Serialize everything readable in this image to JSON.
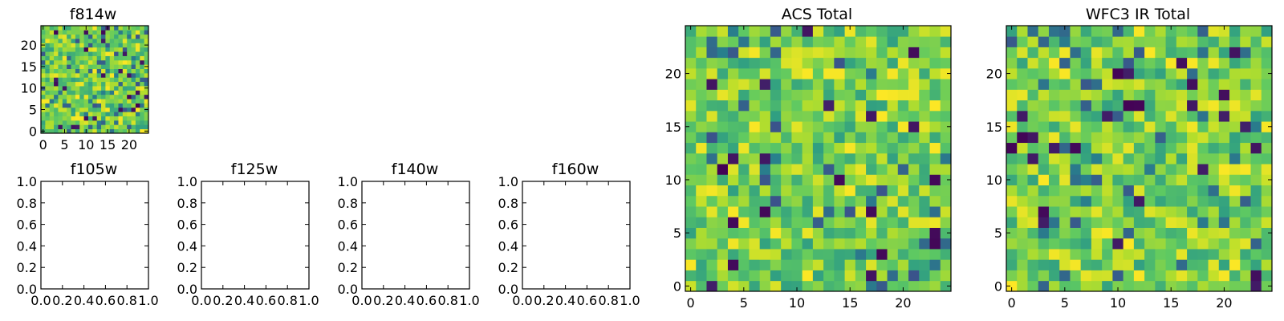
{
  "chart_data": [
    {
      "type": "heatmap",
      "title": "f814w",
      "xlim": [
        -0.5,
        24.5
      ],
      "ylim": [
        -0.5,
        24.5
      ],
      "xticks": [
        0,
        5,
        10,
        15,
        20
      ],
      "yticks": [
        0,
        5,
        10,
        15,
        20
      ],
      "grid_size": 25,
      "colormap": "viridis",
      "grid": false
    },
    {
      "type": "heatmap",
      "title": "f105w",
      "xlim": [
        0.0,
        1.0
      ],
      "ylim": [
        0.0,
        1.0
      ],
      "xticks": [
        "0.0",
        "0.2",
        "0.4",
        "0.6",
        "0.8",
        "1.0"
      ],
      "yticks": [
        "0.0",
        "0.2",
        "0.4",
        "0.6",
        "0.8",
        "1.0"
      ],
      "empty": true,
      "grid": false
    },
    {
      "type": "heatmap",
      "title": "f125w",
      "xlim": [
        0.0,
        1.0
      ],
      "ylim": [
        0.0,
        1.0
      ],
      "xticks": [
        "0.0",
        "0.2",
        "0.4",
        "0.6",
        "0.8",
        "1.0"
      ],
      "yticks": [
        "0.0",
        "0.2",
        "0.4",
        "0.6",
        "0.8",
        "1.0"
      ],
      "empty": true,
      "grid": false
    },
    {
      "type": "heatmap",
      "title": "f140w",
      "xlim": [
        0.0,
        1.0
      ],
      "ylim": [
        0.0,
        1.0
      ],
      "xticks": [
        "0.0",
        "0.2",
        "0.4",
        "0.6",
        "0.8",
        "1.0"
      ],
      "yticks": [
        "0.0",
        "0.2",
        "0.4",
        "0.6",
        "0.8",
        "1.0"
      ],
      "empty": true,
      "grid": false
    },
    {
      "type": "heatmap",
      "title": "f160w",
      "xlim": [
        0.0,
        1.0
      ],
      "ylim": [
        0.0,
        1.0
      ],
      "xticks": [
        "0.0",
        "0.2",
        "0.4",
        "0.6",
        "0.8",
        "1.0"
      ],
      "yticks": [
        "0.0",
        "0.2",
        "0.4",
        "0.6",
        "0.8",
        "1.0"
      ],
      "empty": true,
      "grid": false
    },
    {
      "type": "heatmap",
      "title": "ACS Total",
      "xlim": [
        -0.5,
        24.5
      ],
      "ylim": [
        -0.5,
        24.5
      ],
      "xticks": [
        0,
        5,
        10,
        15,
        20
      ],
      "yticks": [
        0,
        5,
        10,
        15,
        20
      ],
      "grid_size": 25,
      "colormap": "viridis",
      "grid": false
    },
    {
      "type": "heatmap",
      "title": "WFC3 IR Total",
      "xlim": [
        -0.5,
        24.5
      ],
      "ylim": [
        -0.5,
        24.5
      ],
      "xticks": [
        0,
        5,
        10,
        15,
        20
      ],
      "yticks": [
        0,
        5,
        10,
        15,
        20
      ],
      "grid_size": 25,
      "colormap": "viridis",
      "grid": false
    }
  ],
  "colors": {
    "viridis": [
      "#440154",
      "#3b528b",
      "#21918c",
      "#5ec962",
      "#b5de2b",
      "#fde725"
    ]
  }
}
